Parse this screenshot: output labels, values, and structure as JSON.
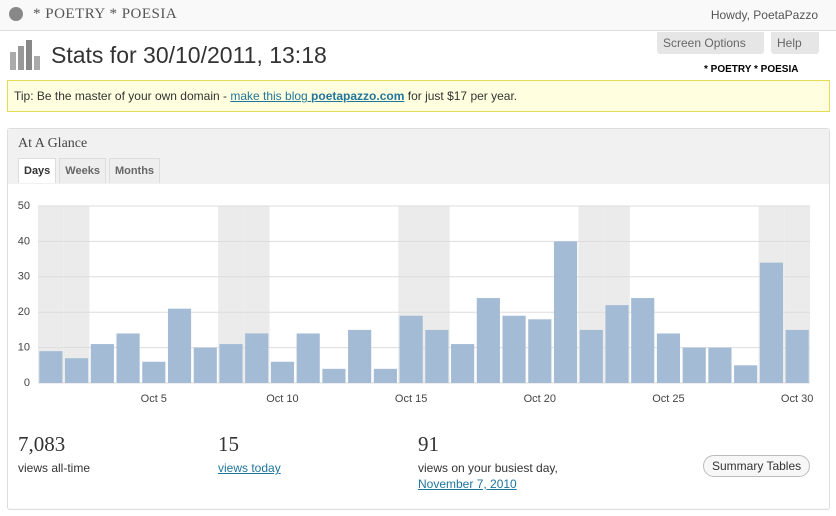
{
  "top_bar": {
    "site": "* POETRY * POESIA",
    "howdy": "Howdy, PoetaPazzo"
  },
  "header": {
    "title": "Stats for 30/10/2011, 13:18",
    "screen_options": "Screen Options",
    "help": "Help",
    "site_name": "* POETRY * POESIA"
  },
  "tip": {
    "text": "Tip: Be the master of your own domain - ",
    "link": "make this blog ",
    "domain": "poetapazzo.com",
    "after": " for just $17 per year."
  },
  "panel": {
    "title": "At A Glance",
    "tabs": [
      "Days",
      "Weeks",
      "Months"
    ]
  },
  "chart_data": {
    "type": "bar",
    "color": "#a3bbd4",
    "categories": [
      null,
      null,
      null,
      null,
      "Oct 5",
      null,
      null,
      null,
      null,
      "Oct 10",
      null,
      null,
      null,
      null,
      "Oct 15",
      null,
      null,
      null,
      null,
      "Oct 20",
      null,
      null,
      null,
      null,
      "Oct 25",
      null,
      null,
      null,
      null,
      "Oct 30"
    ],
    "values": [
      9,
      7,
      11,
      14,
      6,
      21,
      10,
      11,
      14,
      6,
      14,
      4,
      15,
      4,
      19,
      15,
      11,
      24,
      19,
      18,
      40,
      15,
      22,
      24,
      14,
      10,
      10,
      5,
      34,
      15
    ],
    "ylim": [
      0,
      50
    ],
    "yticks": [
      0,
      10,
      20,
      30,
      40,
      50
    ],
    "grid": true
  },
  "summary": [
    {
      "value": "7,083",
      "label": "views all-time"
    },
    {
      "value": "15",
      "label": "views today"
    },
    {
      "value": "91",
      "label": "views on your busiest day,",
      "date": "November 7, 2010"
    }
  ],
  "summary_button": "Summary Tables"
}
